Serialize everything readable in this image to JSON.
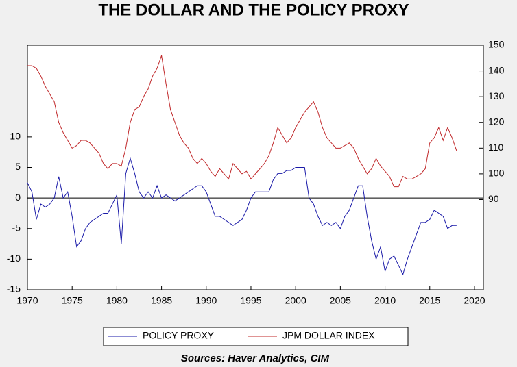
{
  "chart_data": {
    "type": "line",
    "title": "THE DOLLAR AND THE POLICY PROXY",
    "source": "Sources:  Haver Analytics, CIM",
    "x": [
      1970,
      1970.5,
      1971,
      1971.5,
      1972,
      1972.5,
      1973,
      1973.5,
      1974,
      1974.5,
      1975,
      1975.5,
      1976,
      1976.5,
      1977,
      1977.5,
      1978,
      1978.5,
      1979,
      1979.5,
      1980,
      1980.5,
      1981,
      1981.5,
      1982,
      1982.5,
      1983,
      1983.5,
      1984,
      1984.5,
      1985,
      1985.5,
      1986,
      1986.5,
      1987,
      1987.5,
      1988,
      1988.5,
      1989,
      1989.5,
      1990,
      1990.5,
      1991,
      1991.5,
      1992,
      1992.5,
      1993,
      1993.5,
      1994,
      1994.5,
      1995,
      1995.5,
      1996,
      1996.5,
      1997,
      1997.5,
      1998,
      1998.5,
      1999,
      1999.5,
      2000,
      2000.5,
      2001,
      2001.5,
      2002,
      2002.5,
      2003,
      2003.5,
      2004,
      2004.5,
      2005,
      2005.5,
      2006,
      2006.5,
      2007,
      2007.5,
      2008,
      2008.5,
      2009,
      2009.5,
      2010,
      2010.5,
      2011,
      2011.5,
      2012,
      2012.5,
      2013,
      2013.5,
      2014,
      2014.5,
      2015,
      2015.5,
      2016,
      2016.5,
      2017,
      2017.5,
      2018
    ],
    "series": [
      {
        "name": "POLICY PROXY",
        "color": "#1a1aa8",
        "values": [
          2.5,
          1,
          -3.5,
          -1,
          -1.5,
          -1,
          0,
          3.5,
          0,
          1,
          -3,
          -8,
          -7,
          -5,
          -4,
          -3.5,
          -3,
          -2.5,
          -2.5,
          -1,
          0.5,
          -7.5,
          4,
          6.5,
          4,
          1,
          0,
          1,
          0,
          2,
          0,
          0.5,
          0,
          -0.5,
          0,
          0.5,
          1,
          1.5,
          2,
          2,
          1,
          -1,
          -3,
          -3,
          -3.5,
          -4,
          -4.5,
          -4,
          -3.5,
          -2,
          0,
          1,
          1,
          1,
          1,
          3,
          4,
          4,
          4.5,
          4.5,
          5,
          5,
          5,
          0,
          -1,
          -3,
          -4.5,
          -4,
          -4.5,
          -4,
          -5,
          -3,
          -2,
          0,
          2,
          2,
          -3,
          -7,
          -10,
          -8,
          -12,
          -10,
          -9.5,
          -11,
          -12.5,
          -10,
          -8,
          -6,
          -4,
          -4,
          -3.5,
          -2,
          -2.5,
          -3,
          -5,
          -4.5,
          -4.5
        ]
      },
      {
        "name": "JPM DOLLAR INDEX",
        "color": "#c0282a",
        "axis": "y2",
        "values": [
          142,
          142,
          141,
          138,
          134,
          131,
          128,
          120,
          116,
          113,
          110,
          111,
          113,
          113,
          112,
          110,
          108,
          104,
          102,
          104,
          104,
          103,
          110,
          120,
          125,
          126,
          130,
          133,
          138,
          141,
          146,
          135,
          125,
          120,
          115,
          112,
          110,
          106,
          104,
          106,
          104,
          101,
          99,
          102,
          100,
          98,
          104,
          102,
          100,
          101,
          98,
          100,
          102,
          104,
          107,
          112,
          118,
          115,
          112,
          114,
          118,
          121,
          124,
          126,
          128,
          124,
          118,
          114,
          112,
          110,
          110,
          111,
          112,
          110,
          106,
          103,
          100,
          102,
          106,
          103,
          101,
          99,
          95,
          95,
          99,
          98,
          98,
          99,
          100,
          102,
          112,
          114,
          118,
          113,
          118,
          114,
          109
        ]
      }
    ],
    "xlim": [
      1970,
      2021
    ],
    "xticks": [
      1970,
      1975,
      1980,
      1985,
      1990,
      1995,
      2000,
      2005,
      2010,
      2015,
      2020
    ],
    "ylim": [
      -15,
      25
    ],
    "yticks": [
      -15,
      -10,
      -5,
      0,
      5,
      10
    ],
    "y2lim": [
      55,
      150
    ],
    "y2ticks": [
      90,
      100,
      110,
      120,
      130,
      140,
      150
    ],
    "hline": 0,
    "legend": "bottom"
  }
}
